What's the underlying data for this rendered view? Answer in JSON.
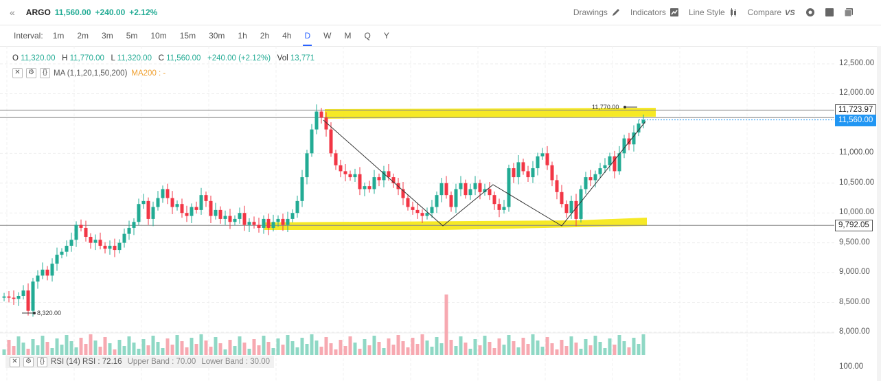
{
  "header": {
    "collapse_glyph": "«",
    "symbol": "ARGO",
    "last": "11,560.00",
    "change": "+240.00",
    "change_pct": "+2.12%",
    "tools": [
      {
        "label": "Drawings",
        "icon": "pencil-icon"
      },
      {
        "label": "Indicators",
        "icon": "trend-icon"
      },
      {
        "label": "Line Style",
        "icon": "candle-style-icon"
      },
      {
        "label": "Compare",
        "icon": "vs-icon"
      }
    ],
    "icon_buttons": [
      "settings-icon",
      "snapshot-icon",
      "windows-icon"
    ]
  },
  "intervals": {
    "label": "Interval:",
    "items": [
      "1m",
      "2m",
      "3m",
      "5m",
      "10m",
      "15m",
      "30m",
      "1h",
      "2h",
      "4h",
      "D",
      "W",
      "M",
      "Q",
      "Y"
    ],
    "active": "D"
  },
  "ohlc": {
    "o_label": "O",
    "o": "11,320.00",
    "h_label": "H",
    "h": "11,770.00",
    "l_label": "L",
    "l": "11,320.00",
    "c_label": "C",
    "c": "11,560.00",
    "chg": "+240.00 (+2.12%)",
    "vol_label": "Vol",
    "vol": "13,771"
  },
  "indicator": {
    "ma_text": "MA (1,1,20,1,50,200)",
    "ma200_text": "MA200 : -"
  },
  "rsi": {
    "title": "RSI (14)",
    "value_text": "RSI : 72.16",
    "upper": "Upper Band : 70.00",
    "lower": "Lower Band : 30.00",
    "axis_value": "100.00"
  },
  "price_axis": {
    "ticks": [
      "12,500.00",
      "12,000.00",
      "11,000.00",
      "10,500.00",
      "10,000.00",
      "9,500.00",
      "9,000.00",
      "8,500.00",
      "8,000.00"
    ],
    "tick_values": [
      12500,
      12000,
      11000,
      10500,
      10000,
      9500,
      9000,
      8500,
      8000
    ],
    "resistance_label": "11,723.97",
    "resistance_value": 11723.97,
    "current_label": "11,560.00",
    "current_value": 11560,
    "support_label": "9,792.05",
    "support_value": 9792.05
  },
  "annotations": {
    "high_label": "11,770.00",
    "high_value": 11770,
    "low_label": "8,320.00",
    "low_value": 8320
  },
  "colors": {
    "up": "#22ab94",
    "down": "#f23645",
    "highlight": "#f5e500",
    "accent": "#2962ff",
    "vol_up": "#8fd8c5",
    "vol_down": "#f7a9b1"
  },
  "chart_data": {
    "type": "candlestick",
    "closes": [
      8600,
      8580,
      8560,
      8610,
      8700,
      8360,
      8850,
      8950,
      9050,
      8950,
      9150,
      9300,
      9350,
      9450,
      9550,
      9800,
      9750,
      9600,
      9500,
      9550,
      9450,
      9400,
      9450,
      9380,
      9500,
      9650,
      9750,
      9850,
      10150,
      10200,
      9900,
      10100,
      10250,
      10400,
      10250,
      10100,
      10150,
      10000,
      9950,
      10100,
      10050,
      10300,
      10200,
      9950,
      10050,
      9900,
      9950,
      9850,
      9900,
      10000,
      9800,
      9850,
      9800,
      9750,
      9900,
      9750,
      9850,
      9900,
      9800,
      9900,
      10000,
      10200,
      10600,
      11000,
      11400,
      11700,
      11600,
      11400,
      11000,
      10800,
      10700,
      10650,
      10600,
      10650,
      10400,
      10450,
      10400,
      10600,
      10550,
      10700,
      10600,
      10500,
      10400,
      10250,
      10100,
      10050,
      10000,
      9950,
      10000,
      10100,
      10300,
      10500,
      10300,
      10100,
      10400,
      10500,
      10300,
      10400,
      10500,
      10350,
      10400,
      10300,
      10150,
      10050,
      10100,
      10750,
      10600,
      10850,
      10700,
      10600,
      10750,
      10950,
      11000,
      10800,
      10550,
      10350,
      10150,
      10000,
      10200,
      9900,
      10400,
      10600,
      10550,
      10650,
      10750,
      10800,
      10950,
      10700,
      11000,
      11250,
      11150,
      11350,
      11500,
      11560
    ],
    "x_start": 0,
    "x_step": 7.0,
    "ylim": [
      7800,
      12700
    ]
  }
}
